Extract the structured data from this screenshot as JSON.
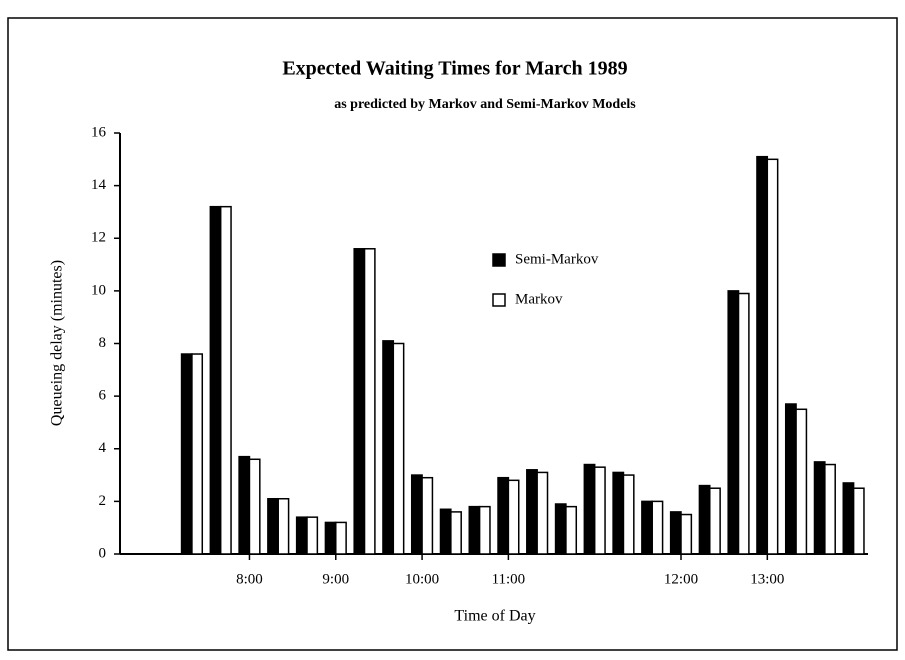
{
  "chart_data": {
    "type": "bar",
    "title": "Expected Waiting Times for March 1989",
    "subtitle": "as predicted by Markov and Semi-Markov Models",
    "xlabel": "Time of Day",
    "ylabel": "Queueing delay (minutes)",
    "categories": [
      null,
      null,
      null,
      null,
      "8:00",
      null,
      null,
      "9:00",
      null,
      null,
      "10:00",
      null,
      null,
      "11:00",
      null,
      null,
      null,
      null,
      null,
      "12:00",
      null,
      null,
      "13:00",
      null,
      null,
      null
    ],
    "series": [
      {
        "name": "Semi-Markov",
        "color": "#000000",
        "values": [
          null,
          null,
          7.6,
          13.2,
          3.7,
          2.1,
          1.4,
          1.2,
          11.6,
          8.1,
          3.0,
          1.7,
          1.8,
          2.9,
          3.2,
          1.9,
          3.4,
          3.1,
          2.0,
          1.6,
          2.6,
          10.0,
          15.1,
          5.7,
          3.5,
          2.7
        ]
      },
      {
        "name": "Markov",
        "color": "#ffffff",
        "values": [
          null,
          null,
          7.6,
          13.2,
          3.6,
          2.1,
          1.4,
          1.2,
          11.6,
          8.0,
          2.9,
          1.6,
          1.8,
          2.8,
          3.1,
          1.8,
          3.3,
          3.0,
          2.0,
          1.5,
          2.5,
          9.9,
          15.0,
          5.5,
          3.4,
          2.5
        ]
      }
    ],
    "ylim": [
      0,
      16
    ],
    "yticks": [
      0,
      2,
      4,
      6,
      8,
      10,
      12,
      14,
      16
    ],
    "legend": "upper center"
  }
}
